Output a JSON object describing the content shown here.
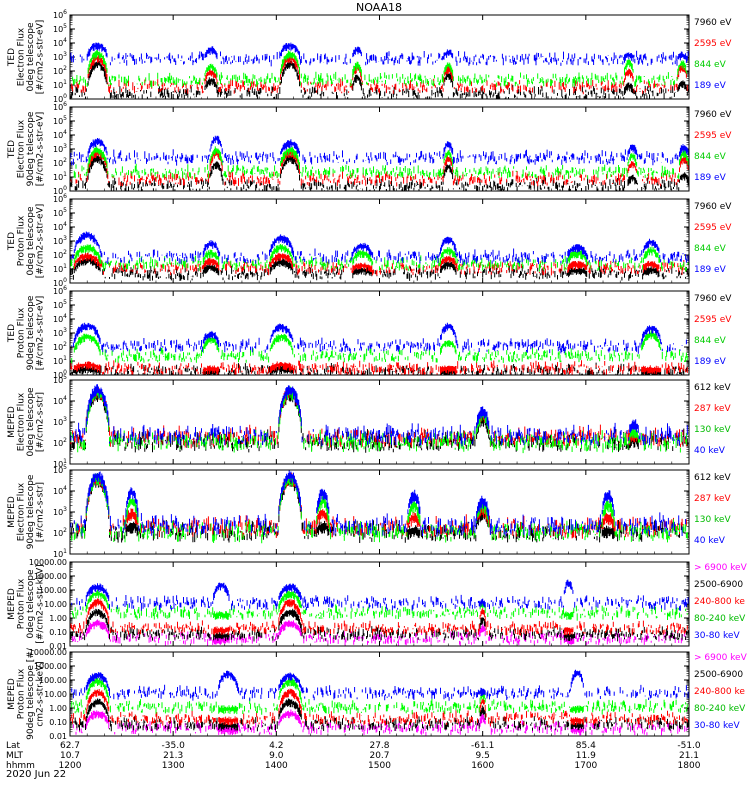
{
  "title": "NOAA18",
  "date_label": "2020 Jun 22",
  "colors": {
    "black": "#000000",
    "red": "#ff0000",
    "green": "#00ff00",
    "blue": "#0000ff",
    "magenta": "#ff00ff",
    "ted_green_label": "#00cc00",
    "meped_green_label": "#00bb00"
  },
  "xaxis": {
    "row_labels": [
      "Lat",
      "MLT",
      "hhmm"
    ],
    "ticks": [
      {
        "hhmm": "1200",
        "lat": "62.7",
        "mlt": "10.7"
      },
      {
        "hhmm": "1300",
        "lat": "-35.0",
        "mlt": "21.3"
      },
      {
        "hhmm": "1400",
        "lat": "4.2",
        "mlt": "9.0"
      },
      {
        "hhmm": "1500",
        "lat": "27.8",
        "mlt": "20.7"
      },
      {
        "hhmm": "1600",
        "lat": "-61.1",
        "mlt": "9.5"
      },
      {
        "hhmm": "1700",
        "lat": "85.4",
        "mlt": "11.9"
      },
      {
        "hhmm": "1800",
        "lat": "-51.0",
        "mlt": "21.1"
      }
    ]
  },
  "panels": [
    {
      "ylabel": [
        "TED",
        "Electron Flux",
        "0deg telescope",
        "[#/cm2-s-str-eV]"
      ],
      "yscale": "log",
      "ylim_exp": [
        0,
        6
      ],
      "tick_labels": [
        "10^0",
        "10^1",
        "10^2",
        "10^3",
        "10^4",
        "10^5",
        "10^6"
      ],
      "legend": [
        {
          "text": "7960 eV",
          "color": "#000000"
        },
        {
          "text": "2595 eV",
          "color": "#ff0000"
        },
        {
          "text": "844 eV",
          "color": "#00cc00"
        },
        {
          "text": "189 eV",
          "color": "#0000ff"
        }
      ]
    },
    {
      "ylabel": [
        "TED",
        "Electron Flux",
        "90deg telescope",
        "[#/cm2-s-str-eV]"
      ],
      "yscale": "log",
      "ylim_exp": [
        0,
        6
      ],
      "tick_labels": [
        "10^0",
        "10^1",
        "10^2",
        "10^3",
        "10^4",
        "10^5",
        "10^6"
      ],
      "legend": [
        {
          "text": "7960 eV",
          "color": "#000000"
        },
        {
          "text": "2595 eV",
          "color": "#ff0000"
        },
        {
          "text": "844 eV",
          "color": "#00cc00"
        },
        {
          "text": "189 eV",
          "color": "#0000ff"
        }
      ]
    },
    {
      "ylabel": [
        "TED",
        "Proton Flux",
        "0deg telescope",
        "[#/cm2-s-str-eV]"
      ],
      "yscale": "log",
      "ylim_exp": [
        0,
        6
      ],
      "tick_labels": [
        "10^0",
        "10^1",
        "10^2",
        "10^3",
        "10^4",
        "10^5",
        "10^6"
      ],
      "legend": [
        {
          "text": "7960 eV",
          "color": "#000000"
        },
        {
          "text": "2595 eV",
          "color": "#ff0000"
        },
        {
          "text": "844 eV",
          "color": "#00cc00"
        },
        {
          "text": "189 eV",
          "color": "#0000ff"
        }
      ]
    },
    {
      "ylabel": [
        "TED",
        "Proton Flux",
        "90deg telescope",
        "[#/cm2-s-str-eV]"
      ],
      "yscale": "log",
      "ylim_exp": [
        0,
        6
      ],
      "tick_labels": [
        "10^0",
        "10^1",
        "10^2",
        "10^3",
        "10^4",
        "10^5",
        "10^6"
      ],
      "legend": [
        {
          "text": "7960 eV",
          "color": "#000000"
        },
        {
          "text": "2595 eV",
          "color": "#ff0000"
        },
        {
          "text": "844 eV",
          "color": "#00cc00"
        },
        {
          "text": "189 eV",
          "color": "#0000ff"
        }
      ]
    },
    {
      "ylabel": [
        "MEPED",
        "Electron Flux",
        "0deg telescope",
        "[#/cm2-s-str]"
      ],
      "yscale": "log",
      "ylim_exp": [
        1,
        5
      ],
      "tick_labels": [
        "10^1",
        "10^2",
        "10^3",
        "10^4",
        "10^5"
      ],
      "legend": [
        {
          "text": "612 keV",
          "color": "#000000"
        },
        {
          "text": "287 keV",
          "color": "#ff0000"
        },
        {
          "text": "130 keV",
          "color": "#00bb00"
        },
        {
          "text": "40 keV",
          "color": "#0000ff"
        }
      ]
    },
    {
      "ylabel": [
        "MEPED",
        "Electron Flux",
        "90deg telescope",
        "[#/cm2-s-str]"
      ],
      "yscale": "log",
      "ylim_exp": [
        1,
        5
      ],
      "tick_labels": [
        "10^1",
        "10^2",
        "10^3",
        "10^4",
        "10^5"
      ],
      "legend": [
        {
          "text": "612 keV",
          "color": "#000000"
        },
        {
          "text": "287 keV",
          "color": "#ff0000"
        },
        {
          "text": "130 keV",
          "color": "#00bb00"
        },
        {
          "text": "40 keV",
          "color": "#0000ff"
        }
      ]
    },
    {
      "ylabel": [
        "MEPED",
        "Proton Flux",
        "0deg telescope",
        "[#/cm2-s-str-keV]"
      ],
      "yscale": "log",
      "ylim_exp": [
        -2,
        4
      ],
      "tick_labels": [
        "0.01",
        "0.10",
        "1.00",
        "10.00",
        "100.00",
        "1000.00",
        "10000.00"
      ],
      "legend": [
        {
          "text": "> 6900 keV",
          "color": "#ff00ff"
        },
        {
          "text": "2500-6900",
          "color": "#000000"
        },
        {
          "text": "240-800 ke",
          "color": "#ff0000"
        },
        {
          "text": "80-240 keV",
          "color": "#00bb00"
        },
        {
          "text": "30-80 keV",
          "color": "#0000ff"
        }
      ]
    },
    {
      "ylabel": [
        "MEPED",
        "Proton Flux",
        "90deg telescope [#/",
        "cm2-s-str-keV]"
      ],
      "yscale": "log",
      "ylim_exp": [
        -2,
        4
      ],
      "tick_labels": [
        "0.01",
        "0.10",
        "1.00",
        "10.00",
        "100.00",
        "1000.00",
        "10000.00"
      ],
      "legend": [
        {
          "text": "> 6900 keV",
          "color": "#ff00ff"
        },
        {
          "text": "2500-6900",
          "color": "#000000"
        },
        {
          "text": "240-800 ke",
          "color": "#ff0000"
        },
        {
          "text": "80-240 keV",
          "color": "#00bb00"
        },
        {
          "text": "30-80 keV",
          "color": "#0000ff"
        }
      ]
    }
  ],
  "chart_data": {
    "type": "line",
    "title": "NOAA18",
    "x_unit": "hhmm",
    "xlim": [
      "1200",
      "1800"
    ],
    "panels": [
      {
        "name": "TED Electron Flux 0deg telescope",
        "series_colors": [
          "#000000",
          "#ff0000",
          "#00ff00",
          "#0000ff"
        ],
        "bg_level_exp": [
          0.3,
          0.8,
          1.3,
          2.8
        ],
        "passes": [
          {
            "hhmm": "1216",
            "half_width_min": 6,
            "peak_exp": [
              2.6,
              3.0,
              3.3,
              3.9
            ]
          },
          {
            "hhmm": "1322",
            "half_width_min": 4,
            "peak_exp": [
              1.4,
              2.0,
              2.4,
              3.6
            ]
          },
          {
            "hhmm": "1408",
            "half_width_min": 6,
            "peak_exp": [
              2.6,
              3.0,
              3.3,
              3.9
            ]
          },
          {
            "hhmm": "1447",
            "half_width_min": 3,
            "peak_exp": [
              1.6,
              2.3,
              2.5,
              3.6
            ]
          },
          {
            "hhmm": "1540",
            "half_width_min": 3,
            "peak_exp": [
              1.8,
              2.2,
              2.5,
              3.4
            ]
          },
          {
            "hhmm": "1725",
            "half_width_min": 3,
            "peak_exp": [
              1.0,
              2.0,
              2.7,
              3.2
            ]
          },
          {
            "hhmm": "1756",
            "half_width_min": 3,
            "peak_exp": [
              1.2,
              2.4,
              2.6,
              3.2
            ]
          }
        ]
      },
      {
        "name": "TED Electron Flux 90deg telescope",
        "series_colors": [
          "#000000",
          "#ff0000",
          "#00ff00",
          "#0000ff"
        ],
        "bg_level_exp": [
          0.3,
          0.8,
          1.3,
          2.3
        ],
        "passes": [
          {
            "hhmm": "1216",
            "half_width_min": 6,
            "peak_exp": [
              2.4,
              2.8,
              3.0,
              3.6
            ]
          },
          {
            "hhmm": "1325",
            "half_width_min": 4,
            "peak_exp": [
              2.0,
              2.8,
              3.0,
              3.8
            ]
          },
          {
            "hhmm": "1408",
            "half_width_min": 6,
            "peak_exp": [
              2.4,
              2.8,
              3.0,
              3.5
            ]
          },
          {
            "hhmm": "1540",
            "half_width_min": 3,
            "peak_exp": [
              1.8,
              2.4,
              2.8,
              3.4
            ]
          },
          {
            "hhmm": "1727",
            "half_width_min": 3,
            "peak_exp": [
              1.0,
              2.0,
              2.6,
              3.2
            ]
          },
          {
            "hhmm": "1757",
            "half_width_min": 3,
            "peak_exp": [
              1.2,
              2.4,
              2.8,
              3.2
            ]
          }
        ]
      },
      {
        "name": "TED Proton Flux 0deg telescope",
        "series_colors": [
          "#000000",
          "#ff0000",
          "#00ff00",
          "#0000ff"
        ],
        "bg_level_exp": [
          0.6,
          1.0,
          1.3,
          1.8
        ],
        "passes": [
          {
            "hhmm": "1210",
            "half_width_min": 8,
            "peak_exp": [
              1.7,
              2.0,
              2.6,
              3.5
            ]
          },
          {
            "hhmm": "1322",
            "half_width_min": 5,
            "peak_exp": [
              1.2,
              1.6,
              2.2,
              2.9
            ]
          },
          {
            "hhmm": "1403",
            "half_width_min": 7,
            "peak_exp": [
              1.6,
              2.0,
              2.6,
              3.3
            ]
          },
          {
            "hhmm": "1450",
            "half_width_min": 6,
            "peak_exp": [
              1.0,
              1.3,
              2.2,
              2.7
            ]
          },
          {
            "hhmm": "1540",
            "half_width_min": 5,
            "peak_exp": [
              1.4,
              1.8,
              2.4,
              3.2
            ]
          },
          {
            "hhmm": "1655",
            "half_width_min": 6,
            "peak_exp": [
              1.0,
              1.4,
              2.2,
              2.6
            ]
          },
          {
            "hhmm": "1738",
            "half_width_min": 5,
            "peak_exp": [
              1.0,
              1.4,
              2.4,
              3.0
            ]
          }
        ]
      },
      {
        "name": "TED Proton Flux 90deg telescope",
        "series_colors": [
          "#000000",
          "#ff0000",
          "#00ff00",
          "#0000ff"
        ],
        "bg_level_exp": [
          0.2,
          0.4,
          1.3,
          2.0
        ],
        "passes": [
          {
            "hhmm": "1210",
            "half_width_min": 8,
            "peak_exp": [
              0.5,
              0.8,
              2.8,
              3.6
            ]
          },
          {
            "hhmm": "1322",
            "half_width_min": 5,
            "peak_exp": [
              0.3,
              0.5,
              2.6,
              3.0
            ]
          },
          {
            "hhmm": "1403",
            "half_width_min": 7,
            "peak_exp": [
              0.5,
              0.8,
              2.8,
              3.5
            ]
          },
          {
            "hhmm": "1540",
            "half_width_min": 5,
            "peak_exp": [
              0.3,
              0.5,
              2.4,
              3.6
            ]
          },
          {
            "hhmm": "1738",
            "half_width_min": 6,
            "peak_exp": [
              0.3,
              0.5,
              3.0,
              3.4
            ]
          }
        ]
      },
      {
        "name": "MEPED Electron Flux 0deg telescope",
        "series_colors": [
          "#000000",
          "#ff0000",
          "#00ff00",
          "#0000ff"
        ],
        "bg_level_exp": [
          2.0,
          2.2,
          2.0,
          2.3
        ],
        "passes": [
          {
            "hhmm": "1216",
            "half_width_min": 7,
            "peak_exp": [
              4.4,
              4.5,
              4.5,
              4.6
            ]
          },
          {
            "hhmm": "1408",
            "half_width_min": 7,
            "peak_exp": [
              4.4,
              4.5,
              4.5,
              4.6
            ]
          },
          {
            "hhmm": "1600",
            "half_width_min": 4,
            "peak_exp": [
              3.2,
              3.4,
              3.4,
              3.6
            ]
          },
          {
            "hhmm": "1728",
            "half_width_min": 3,
            "peak_exp": [
              2.2,
              2.4,
              2.6,
              3.0
            ]
          }
        ]
      },
      {
        "name": "MEPED Electron Flux 90deg telescope",
        "series_colors": [
          "#000000",
          "#ff0000",
          "#00ff00",
          "#0000ff"
        ],
        "bg_level_exp": [
          2.0,
          2.2,
          2.0,
          2.3
        ],
        "passes": [
          {
            "hhmm": "1216",
            "half_width_min": 7,
            "peak_exp": [
              4.6,
              4.7,
              4.7,
              4.8
            ]
          },
          {
            "hhmm": "1236",
            "half_width_min": 4,
            "peak_exp": [
              2.4,
              3.0,
              3.6,
              4.0
            ]
          },
          {
            "hhmm": "1408",
            "half_width_min": 7,
            "peak_exp": [
              4.6,
              4.7,
              4.7,
              4.8
            ]
          },
          {
            "hhmm": "1427",
            "half_width_min": 4,
            "peak_exp": [
              2.4,
              3.0,
              3.6,
              4.0
            ]
          },
          {
            "hhmm": "1520",
            "half_width_min": 4,
            "peak_exp": [
              2.2,
              2.8,
              3.4,
              3.9
            ]
          },
          {
            "hhmm": "1600",
            "half_width_min": 4,
            "peak_exp": [
              3.0,
              3.2,
              3.4,
              3.6
            ]
          },
          {
            "hhmm": "1713",
            "half_width_min": 4,
            "peak_exp": [
              2.2,
              2.8,
              3.4,
              3.9
            ]
          }
        ]
      },
      {
        "name": "MEPED Proton Flux 0deg telescope",
        "series_colors": [
          "#ff00ff",
          "#000000",
          "#ff0000",
          "#00ff00",
          "#0000ff"
        ],
        "bg_level_exp": [
          -1.5,
          -1.2,
          -0.8,
          0.3,
          1.0
        ],
        "passes": [
          {
            "hhmm": "1216",
            "half_width_min": 7,
            "peak_exp": [
              -0.3,
              0.5,
              1.2,
              1.8,
              2.3
            ]
          },
          {
            "hhmm": "1408",
            "half_width_min": 7,
            "peak_exp": [
              -0.3,
              0.5,
              1.2,
              1.8,
              2.3
            ]
          },
          {
            "hhmm": "1600",
            "half_width_min": 2,
            "peak_exp": [
              -0.6,
              0.0,
              0.6,
              1.0,
              1.2
            ]
          },
          {
            "hhmm": "1328",
            "half_width_min": 5,
            "peak_exp": [
              -1.5,
              -1.2,
              -0.8,
              0.3,
              2.4
            ]
          },
          {
            "hhmm": "1650",
            "half_width_min": 3,
            "peak_exp": [
              -1.5,
              -1.2,
              -0.8,
              0.3,
              2.6
            ]
          }
        ]
      },
      {
        "name": "MEPED Proton Flux 90deg telescope",
        "series_colors": [
          "#ff00ff",
          "#000000",
          "#ff0000",
          "#00ff00",
          "#0000ff"
        ],
        "bg_level_exp": [
          -1.5,
          -1.2,
          -0.8,
          0.0,
          1.0
        ],
        "passes": [
          {
            "hhmm": "1216",
            "half_width_min": 7,
            "peak_exp": [
              -0.3,
              0.5,
              1.2,
              2.0,
              2.4
            ]
          },
          {
            "hhmm": "1408",
            "half_width_min": 7,
            "peak_exp": [
              -0.3,
              0.5,
              1.2,
              2.0,
              2.4
            ]
          },
          {
            "hhmm": "1600",
            "half_width_min": 2,
            "peak_exp": [
              -0.6,
              0.0,
              0.6,
              1.0,
              1.3
            ]
          },
          {
            "hhmm": "1332",
            "half_width_min": 6,
            "peak_exp": [
              -1.5,
              -1.2,
              -0.8,
              0.0,
              2.5
            ]
          },
          {
            "hhmm": "1655",
            "half_width_min": 4,
            "peak_exp": [
              -1.5,
              -1.2,
              -0.8,
              0.0,
              2.6
            ]
          }
        ]
      }
    ]
  }
}
